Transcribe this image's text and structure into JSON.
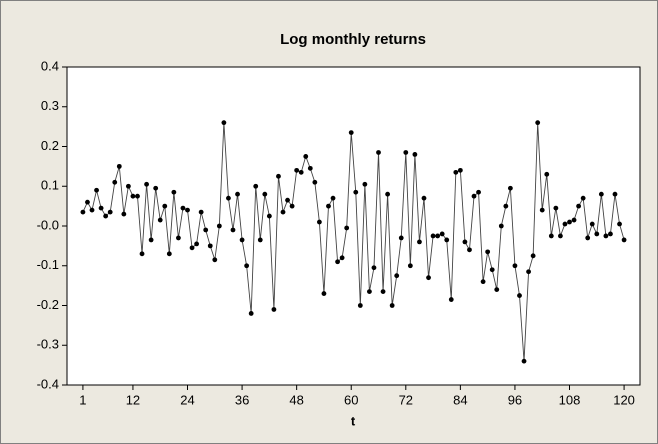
{
  "chart_data": {
    "type": "line",
    "title": "Log monthly returns",
    "x_label": "t",
    "x": [
      1,
      2,
      3,
      4,
      5,
      6,
      7,
      8,
      9,
      10,
      11,
      12,
      13,
      14,
      15,
      16,
      17,
      18,
      19,
      20,
      21,
      22,
      23,
      24,
      25,
      26,
      27,
      28,
      29,
      30,
      31,
      32,
      33,
      34,
      35,
      36,
      37,
      38,
      39,
      40,
      41,
      42,
      43,
      44,
      45,
      46,
      47,
      48,
      49,
      50,
      51,
      52,
      53,
      54,
      55,
      56,
      57,
      58,
      59,
      60,
      61,
      62,
      63,
      64,
      65,
      66,
      67,
      68,
      69,
      70,
      71,
      72,
      73,
      74,
      75,
      76,
      77,
      78,
      79,
      80,
      81,
      82,
      83,
      84,
      85,
      86,
      87,
      88,
      89,
      90,
      91,
      92,
      93,
      94,
      95,
      96,
      97,
      98,
      99,
      100,
      101,
      102,
      103,
      104,
      105,
      106,
      107,
      108,
      109,
      110,
      111,
      112,
      113,
      114,
      115,
      116,
      117,
      118,
      119,
      120
    ],
    "series": [
      {
        "color": "#000000",
        "values": [
          0.035,
          0.06,
          0.04,
          0.09,
          0.045,
          0.025,
          0.035,
          0.11,
          0.15,
          0.03,
          0.1,
          0.075,
          0.075,
          -0.07,
          0.105,
          -0.035,
          0.095,
          0.015,
          0.05,
          -0.07,
          0.085,
          -0.03,
          0.045,
          0.04,
          -0.055,
          -0.045,
          0.035,
          -0.01,
          -0.05,
          -0.085,
          0.0,
          0.26,
          0.07,
          -0.01,
          0.08,
          -0.035,
          -0.1,
          -0.22,
          0.1,
          -0.035,
          0.08,
          0.025,
          -0.21,
          0.125,
          0.035,
          0.065,
          0.05,
          0.14,
          0.135,
          0.175,
          0.145,
          0.11,
          0.01,
          -0.17,
          0.05,
          0.07,
          -0.09,
          -0.08,
          -0.005,
          0.235,
          0.085,
          -0.2,
          0.105,
          -0.165,
          -0.105,
          0.185,
          -0.165,
          0.08,
          -0.2,
          -0.125,
          -0.03,
          0.185,
          -0.1,
          0.18,
          -0.04,
          0.07,
          -0.13,
          -0.025,
          -0.025,
          -0.02,
          -0.035,
          -0.185,
          0.135,
          0.14,
          -0.04,
          -0.06,
          0.075,
          0.085,
          -0.14,
          -0.065,
          -0.11,
          -0.16,
          0.0,
          0.05,
          0.095,
          -0.1,
          -0.175,
          -0.34,
          -0.115,
          -0.075,
          0.26,
          0.04,
          0.13,
          -0.025,
          0.045,
          -0.025,
          0.005,
          0.01,
          0.015,
          0.05,
          0.07,
          -0.03,
          0.005,
          -0.02,
          0.08,
          -0.025,
          -0.02,
          0.08,
          0.005,
          -0.035
        ]
      }
    ],
    "xlim": [
      -2.5,
      123.5
    ],
    "xticks": [
      1,
      12,
      24,
      36,
      48,
      60,
      72,
      84,
      96,
      108,
      120
    ],
    "ylim": [
      -0.4,
      0.4
    ],
    "yticks": [
      0.4,
      0.3,
      0.2,
      0.1,
      {
        "value": 0,
        "label": "-0.0"
      },
      -0.1,
      -0.2,
      -0.3,
      -0.4
    ]
  }
}
